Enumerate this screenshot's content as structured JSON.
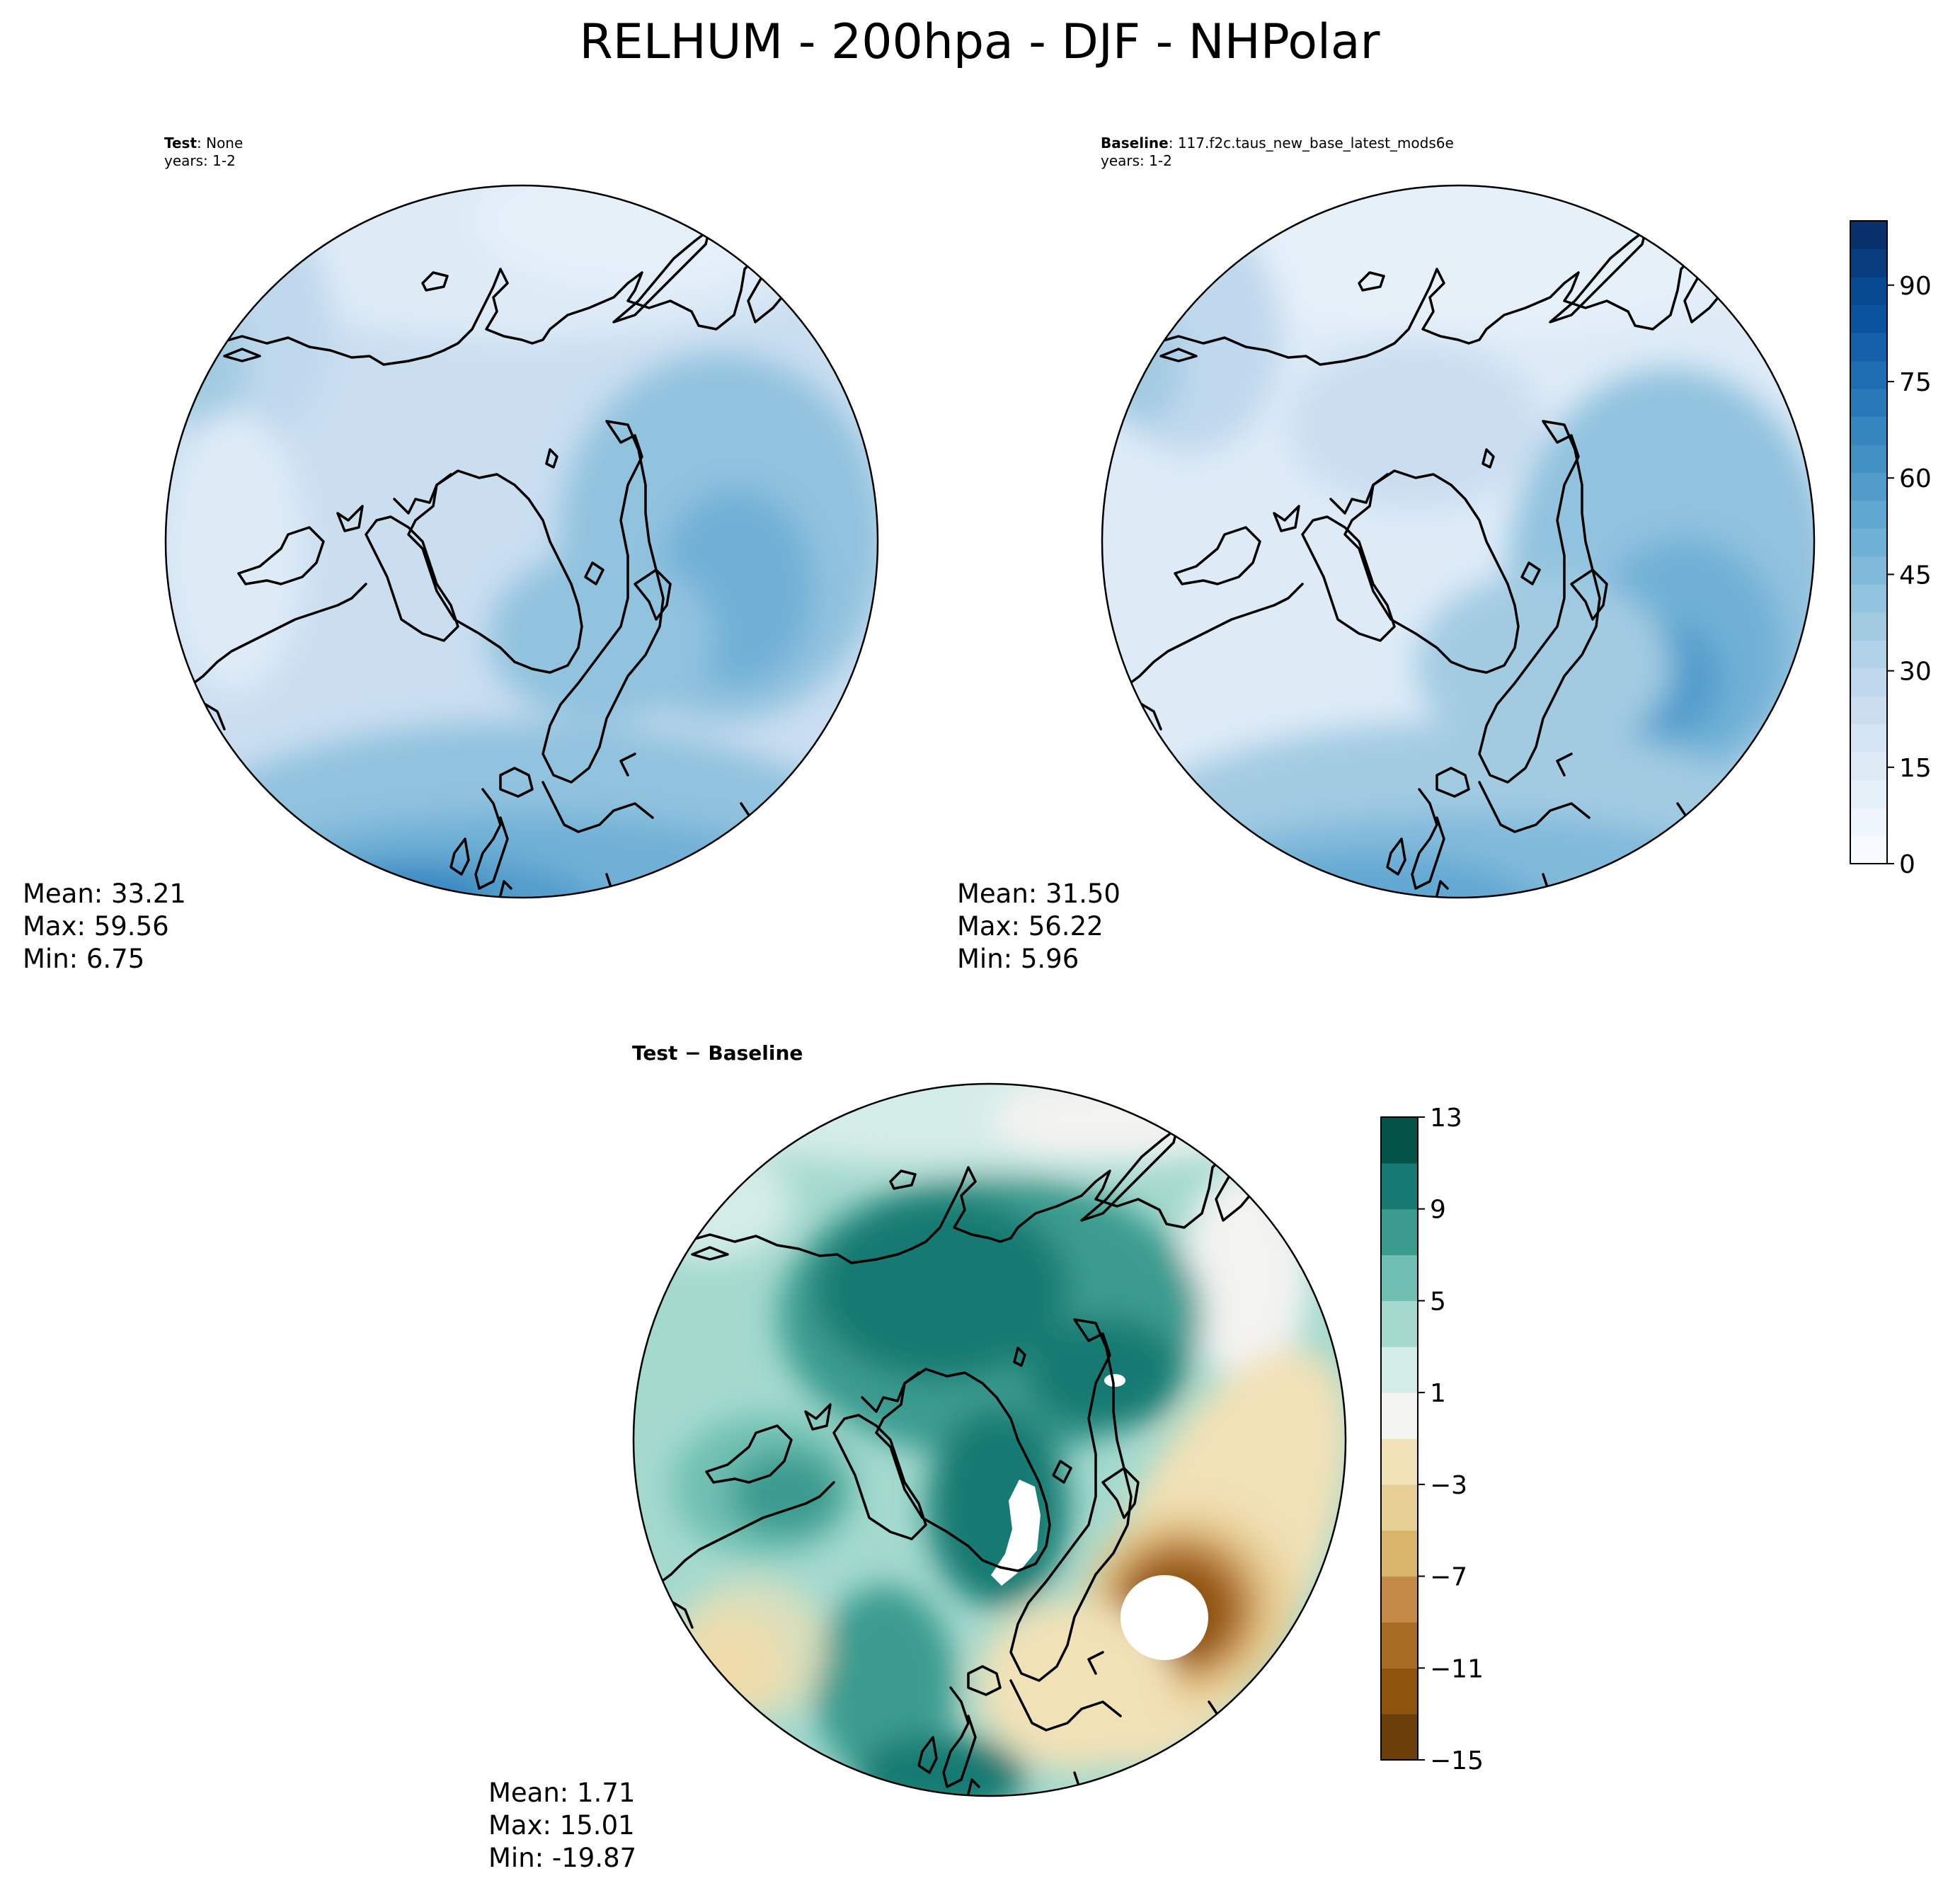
{
  "title": "RELHUM - 200hpa - DJF - NHPolar",
  "test_panel": {
    "label_bold": "Test",
    "label_rest": ": None",
    "years": "years: 1-2",
    "stats": {
      "mean": "Mean: 33.21",
      "max": "Max: 59.56",
      "min": "Min:  6.75"
    }
  },
  "baseline_panel": {
    "label_bold": "Baseline",
    "label_rest": ": 117.f2c.taus_new_base_latest_mods6e",
    "years": "years: 1-2",
    "stats": {
      "mean": "Mean: 31.50",
      "max": "Max: 56.22",
      "min": "Min:  5.96"
    }
  },
  "diff_panel": {
    "label_test": "Test",
    "label_op": " − ",
    "label_base": "Baseline",
    "stats": {
      "mean": "Mean:  1.71",
      "max": "Max: 15.01",
      "min": "Min: -19.87"
    }
  },
  "colorbars": {
    "blues": {
      "range": [
        0,
        100
      ],
      "ticks": [
        {
          "value": 0,
          "label": "0"
        },
        {
          "value": 15,
          "label": "15"
        },
        {
          "value": 30,
          "label": "30"
        },
        {
          "value": 45,
          "label": "45"
        },
        {
          "value": 60,
          "label": "60"
        },
        {
          "value": 75,
          "label": "75"
        },
        {
          "value": 90,
          "label": "90"
        }
      ],
      "colors": [
        "#f7fbff",
        "#eef5fc",
        "#e6f0f9",
        "#deebf7",
        "#d5e5f4",
        "#cadef0",
        "#bfd8ed",
        "#b1d2e8",
        "#a2cbe2",
        "#91c2de",
        "#80b9da",
        "#6fb0d6",
        "#60a7d2",
        "#519ccb",
        "#4291c5",
        "#3585bf",
        "#2979b9",
        "#1e6cb1",
        "#1560a8",
        "#0b549d",
        "#084a91",
        "#083d7f",
        "#08306b"
      ]
    },
    "brbg": {
      "range": [
        -15,
        13
      ],
      "ticks": [
        {
          "value": -15,
          "label": "−15"
        },
        {
          "value": -11,
          "label": "−11"
        },
        {
          "value": -7,
          "label": "−7"
        },
        {
          "value": -3,
          "label": "−3"
        },
        {
          "value": 1,
          "label": "1"
        },
        {
          "value": 5,
          "label": "5"
        },
        {
          "value": 9,
          "label": "9"
        },
        {
          "value": 13,
          "label": "13"
        }
      ],
      "bounds": [
        -15,
        -13,
        -11,
        -9,
        -7,
        -5,
        -3,
        -1,
        1,
        3,
        5,
        7,
        9,
        11,
        13
      ],
      "colors": [
        "#6b3e0a",
        "#8e530d",
        "#a96c25",
        "#c48a45",
        "#d9b56b",
        "#e8cf95",
        "#f1e1b7",
        "#f3f3f1",
        "#d4ece7",
        "#a4d9ce",
        "#6fc0b2",
        "#3b9b8f",
        "#177a72",
        "#045349"
      ]
    }
  }
}
